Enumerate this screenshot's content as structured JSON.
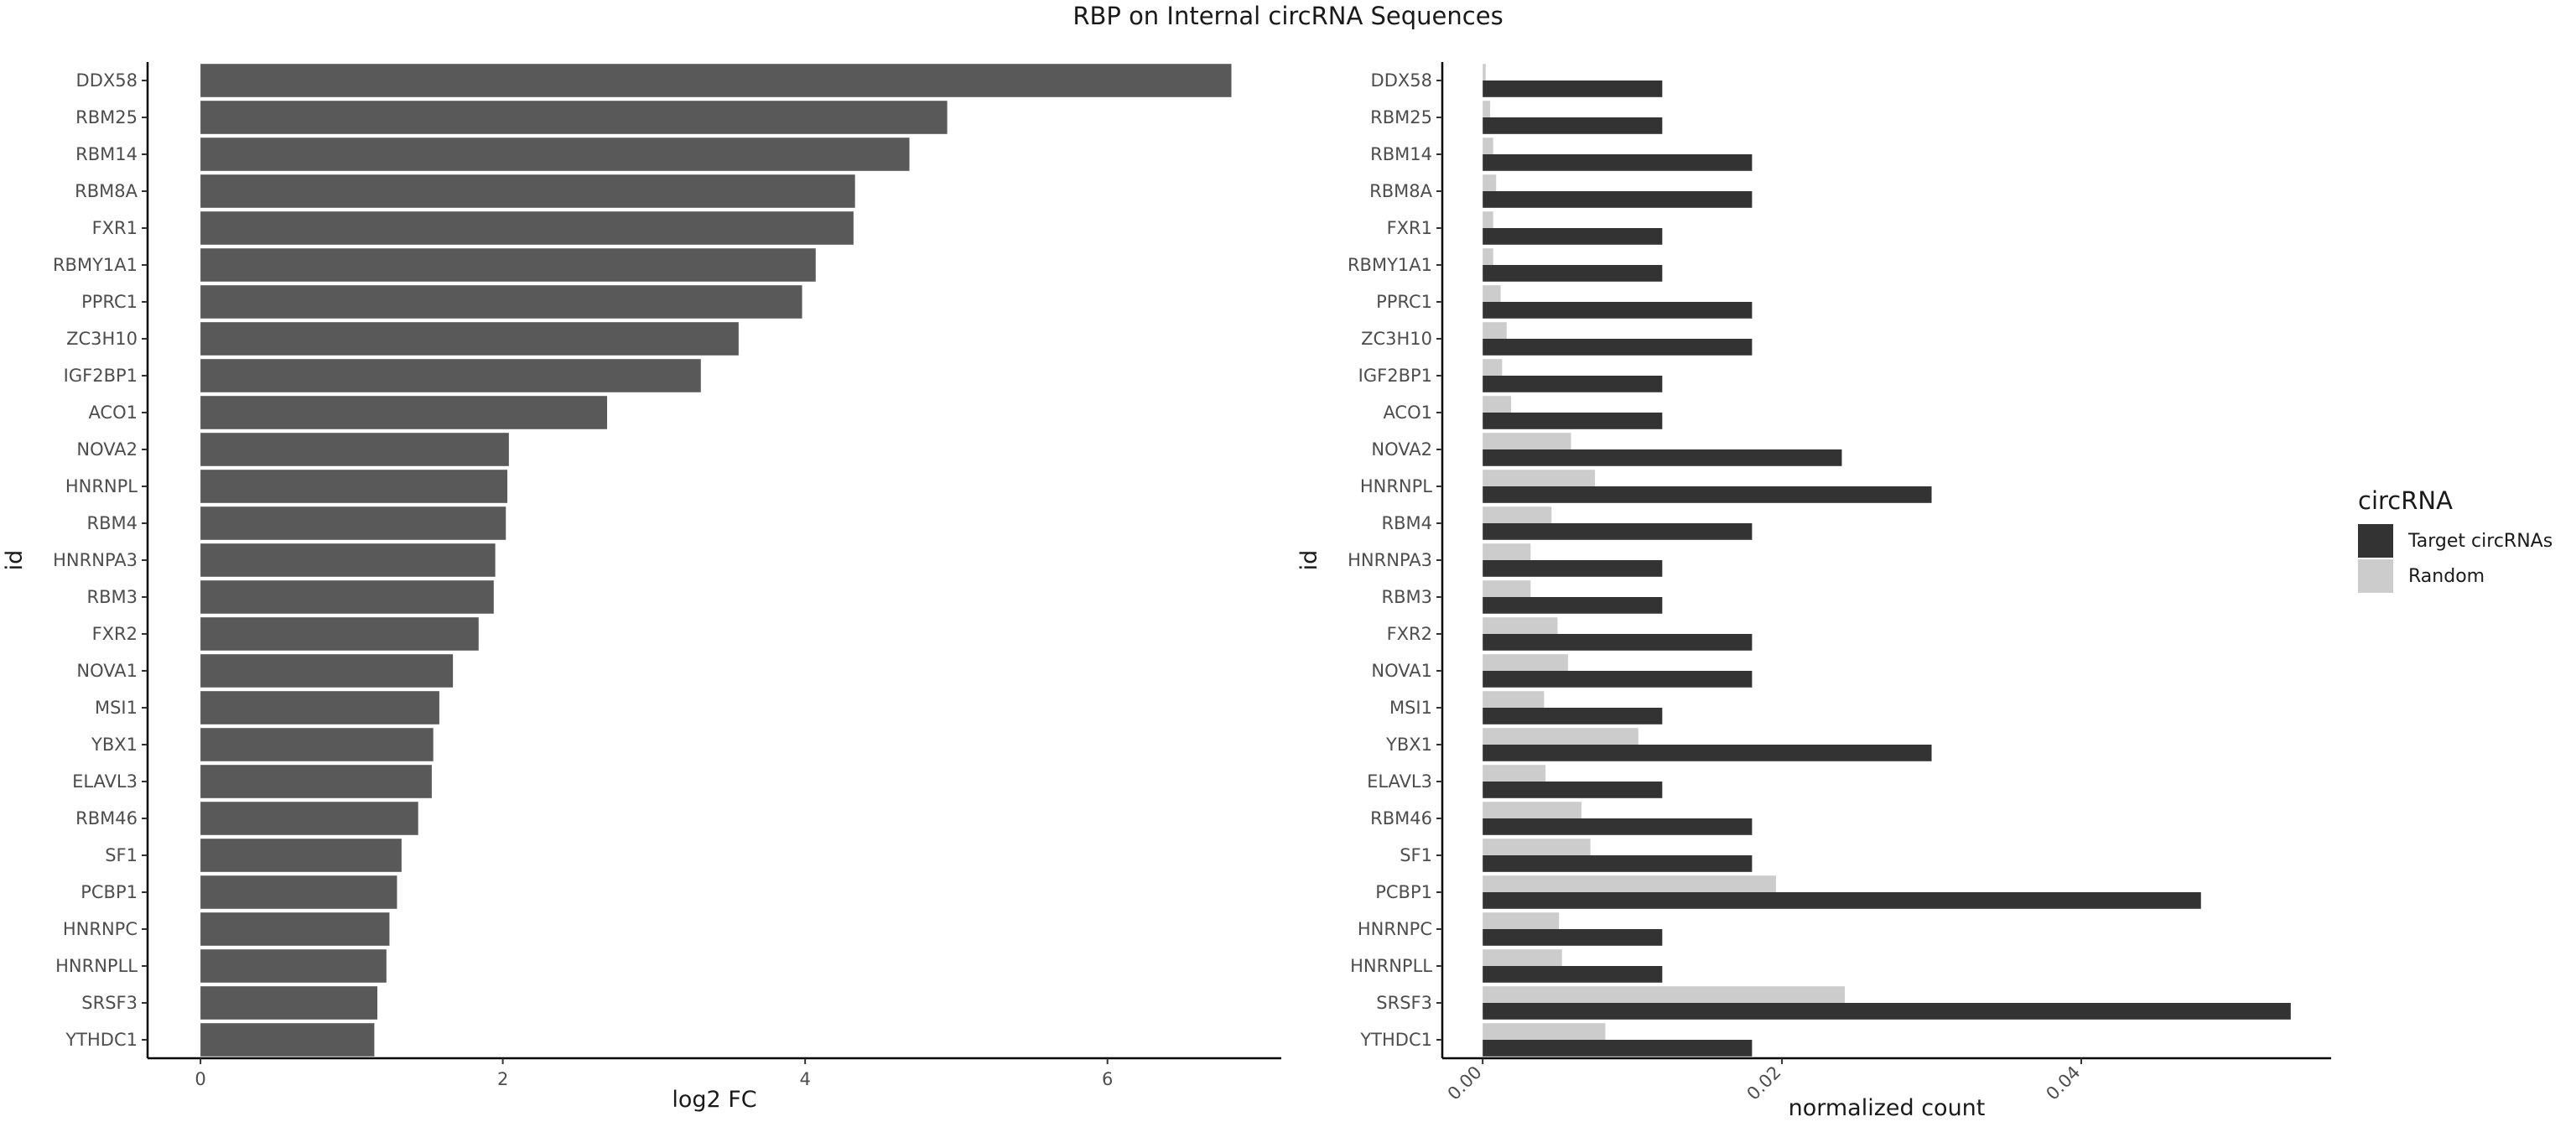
{
  "title": "RBP on Internal circRNA Sequences",
  "chart_data": [
    {
      "type": "bar",
      "orientation": "horizontal",
      "categories": [
        "DDX58",
        "RBM25",
        "RBM14",
        "RBM8A",
        "FXR1",
        "RBMY1A1",
        "PPRC1",
        "ZC3H10",
        "IGF2BP1",
        "ACO1",
        "NOVA2",
        "HNRNPL",
        "RBM4",
        "HNRNPA3",
        "RBM3",
        "FXR2",
        "NOVA1",
        "MSI1",
        "YBX1",
        "ELAVL3",
        "RBM46",
        "SF1",
        "PCBP1",
        "HNRNPC",
        "HNRNPLL",
        "SRSF3",
        "YTHDC1"
      ],
      "values": [
        6.82,
        4.94,
        4.69,
        4.33,
        4.32,
        4.07,
        3.98,
        3.56,
        3.31,
        2.69,
        2.04,
        2.03,
        2.02,
        1.95,
        1.94,
        1.84,
        1.67,
        1.58,
        1.54,
        1.53,
        1.44,
        1.33,
        1.3,
        1.25,
        1.23,
        1.17,
        1.15
      ],
      "xlabel": "log2 FC",
      "ylabel": "id",
      "xlim": [
        -0.35,
        7.15
      ],
      "xticks": [
        0,
        2,
        4,
        6
      ],
      "bar_color": "#595959",
      "grid": false
    },
    {
      "type": "bar",
      "orientation": "horizontal",
      "grouped": true,
      "categories": [
        "DDX58",
        "RBM25",
        "RBM14",
        "RBM8A",
        "FXR1",
        "RBMY1A1",
        "PPRC1",
        "ZC3H10",
        "IGF2BP1",
        "ACO1",
        "NOVA2",
        "HNRNPL",
        "RBM4",
        "HNRNPA3",
        "RBM3",
        "FXR2",
        "NOVA1",
        "MSI1",
        "YBX1",
        "ELAVL3",
        "RBM46",
        "SF1",
        "PCBP1",
        "HNRNPC",
        "HNRNPLL",
        "SRSF3",
        "YTHDC1"
      ],
      "series": [
        {
          "name": "Target circRNAs",
          "color": "#333333",
          "values": [
            0.012,
            0.012,
            0.018,
            0.018,
            0.012,
            0.012,
            0.018,
            0.018,
            0.012,
            0.012,
            0.024,
            0.03,
            0.018,
            0.012,
            0.012,
            0.018,
            0.018,
            0.012,
            0.03,
            0.012,
            0.018,
            0.018,
            0.048,
            0.012,
            0.012,
            0.054,
            0.018
          ]
        },
        {
          "name": "Random",
          "color": "#cccccc",
          "values": [
            0.0002,
            0.0005,
            0.0007,
            0.0009,
            0.0007,
            0.0007,
            0.0012,
            0.0016,
            0.0013,
            0.0019,
            0.0059,
            0.0075,
            0.0046,
            0.0032,
            0.0032,
            0.005,
            0.0057,
            0.0041,
            0.0104,
            0.0042,
            0.0066,
            0.0072,
            0.0196,
            0.0051,
            0.0053,
            0.0242,
            0.0082
          ]
        }
      ],
      "xlabel": "normalized count",
      "ylabel": "id",
      "xlim": [
        -0.0027,
        0.0567
      ],
      "xticks": [
        0.0,
        0.02,
        0.04
      ],
      "xtick_labels": [
        "0.00",
        "0.02",
        "0.04"
      ],
      "grid": false
    }
  ],
  "legend": {
    "title": "circRNA",
    "position": "right",
    "entries": [
      {
        "label": "Target circRNAs",
        "color": "#333333"
      },
      {
        "label": "Random",
        "color": "#cccccc"
      }
    ]
  }
}
